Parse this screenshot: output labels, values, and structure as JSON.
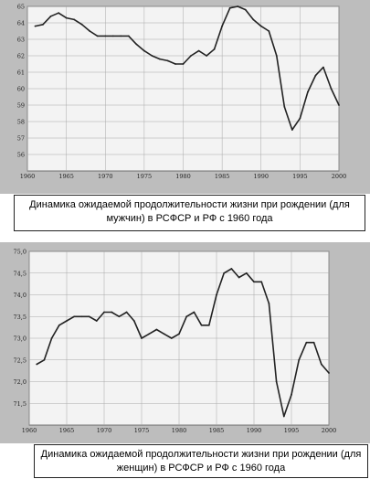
{
  "charts": [
    {
      "caption": "Динамика ожидаемой продолжительности жизни при рождении (для мужчин) в РСФСР и РФ с 1960 года",
      "chart_data": {
        "type": "line",
        "title": "",
        "xlabel": "",
        "ylabel": "",
        "xlim": [
          1960,
          2000
        ],
        "ylim": [
          55,
          65
        ],
        "x_ticks": [
          1960,
          1965,
          1970,
          1975,
          1980,
          1985,
          1990,
          1995,
          2000
        ],
        "y_ticks": [
          56,
          57,
          58,
          59,
          60,
          61,
          62,
          63,
          64,
          65
        ],
        "grid": true,
        "series": [
          {
            "x": [
              1961,
              1962,
              1963,
              1964,
              1965,
              1966,
              1967,
              1968,
              1969,
              1970,
              1971,
              1972,
              1973,
              1974,
              1975,
              1976,
              1977,
              1978,
              1979,
              1980,
              1981,
              1982,
              1983,
              1984,
              1985,
              1986,
              1987,
              1988,
              1989,
              1990,
              1991,
              1992,
              1993,
              1994,
              1995,
              1996,
              1997,
              1998,
              1999,
              2000
            ],
            "y": [
              63.8,
              63.9,
              64.4,
              64.6,
              64.3,
              64.2,
              63.9,
              63.5,
              63.2,
              63.2,
              63.2,
              63.2,
              63.2,
              62.7,
              62.3,
              62.0,
              61.8,
              61.7,
              61.5,
              61.5,
              62.0,
              62.3,
              62.0,
              62.4,
              63.8,
              64.9,
              65.0,
              64.8,
              64.2,
              63.8,
              63.5,
              62.0,
              58.9,
              57.5,
              58.2,
              59.8,
              60.8,
              61.3,
              60.0,
              59.0
            ]
          }
        ]
      }
    },
    {
      "caption": "Динамика ожидаемой продолжительности жизни при рождении (для женщин) в РСФСР и РФ с 1960 года",
      "chart_data": {
        "type": "line",
        "title": "",
        "xlabel": "",
        "ylabel": "",
        "xlim": [
          1960,
          2000
        ],
        "ylim": [
          71.0,
          75.0
        ],
        "x_ticks": [
          1960,
          1965,
          1970,
          1975,
          1980,
          1985,
          1990,
          1995,
          2000
        ],
        "y_ticks": [
          "71,5",
          "72,0",
          "72,5",
          "73,0",
          "73,5",
          "74,0",
          "74,5",
          "75,0"
        ],
        "grid": true,
        "series": [
          {
            "x": [
              1961,
              1962,
              1963,
              1964,
              1965,
              1966,
              1967,
              1968,
              1969,
              1970,
              1971,
              1972,
              1973,
              1974,
              1975,
              1976,
              1977,
              1978,
              1979,
              1980,
              1981,
              1982,
              1983,
              1984,
              1985,
              1986,
              1987,
              1988,
              1989,
              1990,
              1991,
              1992,
              1993,
              1994,
              1995,
              1996,
              1997,
              1998,
              1999,
              2000
            ],
            "y": [
              72.4,
              72.5,
              73.0,
              73.3,
              73.4,
              73.5,
              73.5,
              73.5,
              73.4,
              73.6,
              73.6,
              73.5,
              73.6,
              73.4,
              73.0,
              73.1,
              73.2,
              73.1,
              73.0,
              73.1,
              73.5,
              73.6,
              73.3,
              73.3,
              74.0,
              74.5,
              74.6,
              74.4,
              74.5,
              74.3,
              74.3,
              73.8,
              72.0,
              71.2,
              71.7,
              72.5,
              72.9,
              72.9,
              72.4,
              72.2
            ]
          }
        ]
      }
    }
  ]
}
